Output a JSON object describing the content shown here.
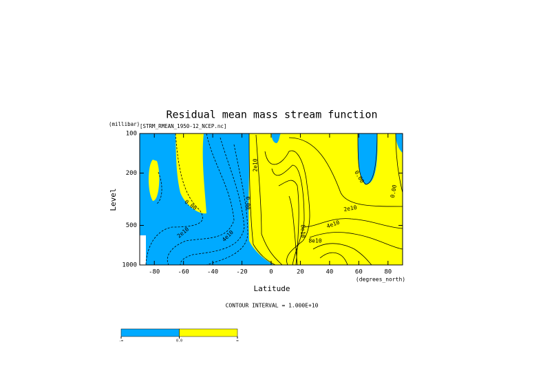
{
  "chart_data": {
    "type": "contour",
    "title": "Residual mean mass stream function",
    "subtitle": "[STRM_RMEAN_1950-12_NCEP.nc]",
    "ylabel": "Level",
    "yunit": "(millibar)",
    "xlabel": "Latitude",
    "xunit": "(degrees_north)",
    "xlim": [
      -90,
      90
    ],
    "xticks": [
      -80,
      -60,
      -40,
      -20,
      0,
      20,
      40,
      60,
      80
    ],
    "ylim": [
      1000,
      100
    ],
    "yticks": [
      100,
      200,
      500,
      1000
    ],
    "ylog": true,
    "note": "CONTOUR INTERVAL = 1.000E+10",
    "contour_labels": [
      "0.00",
      "2e10",
      "4e10",
      "0.00",
      "2e10",
      "8e10",
      "8e10",
      "4e10",
      "2e10",
      "0.00",
      "0.00"
    ],
    "colorbar": {
      "colors": [
        "#00aaff",
        "#ffff00"
      ],
      "labels": [
        "-∞",
        "0.0",
        "∞"
      ]
    }
  }
}
